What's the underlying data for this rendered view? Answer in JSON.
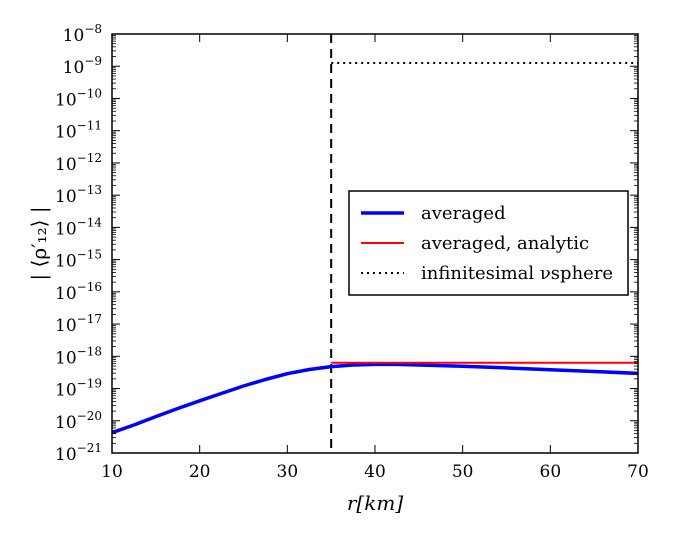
{
  "chart_data": {
    "type": "line",
    "xlabel": "r[km]",
    "ylabel": "| ⟨ρ′₁₂⟩ |",
    "yscale": "log",
    "xlim": [
      10,
      70
    ],
    "ylim_exponents": [
      -21,
      -8
    ],
    "x_ticks": [
      10,
      20,
      30,
      40,
      50,
      60,
      70
    ],
    "y_tick_exponents": [
      -21,
      -20,
      -19,
      -18,
      -17,
      -16,
      -15,
      -14,
      -13,
      -12,
      -11,
      -10,
      -9,
      -8
    ],
    "y_tick_base": "10",
    "vertical_line": {
      "x": 35,
      "style": "dashed",
      "color": "#000000"
    },
    "series": [
      {
        "name": "averaged",
        "color": "#0000ff",
        "style": "solid-thick",
        "x": [
          10,
          12.5,
          15,
          17.5,
          20,
          22.5,
          25,
          27.5,
          30,
          32.5,
          35,
          37.5,
          40,
          42.5,
          45,
          50,
          55,
          60,
          65,
          70
        ],
        "log10_y": [
          -20.37,
          -20.13,
          -19.87,
          -19.62,
          -19.38,
          -19.15,
          -18.92,
          -18.72,
          -18.54,
          -18.41,
          -18.32,
          -18.27,
          -18.25,
          -18.25,
          -18.27,
          -18.31,
          -18.36,
          -18.42,
          -18.47,
          -18.53
        ]
      },
      {
        "name": "averaged, analytic",
        "color": "#ff0000",
        "style": "solid",
        "x": [
          35,
          70
        ],
        "log10_y": [
          -18.2,
          -18.2
        ]
      },
      {
        "name": "infinitesimal νsphere",
        "color": "#000000",
        "style": "dotted",
        "x": [
          35,
          70
        ],
        "log10_y": [
          -8.9,
          -8.9
        ]
      }
    ],
    "legend": {
      "position": "center-right",
      "entries": [
        "averaged",
        "averaged, analytic",
        "infinitesimal νsphere"
      ]
    }
  }
}
